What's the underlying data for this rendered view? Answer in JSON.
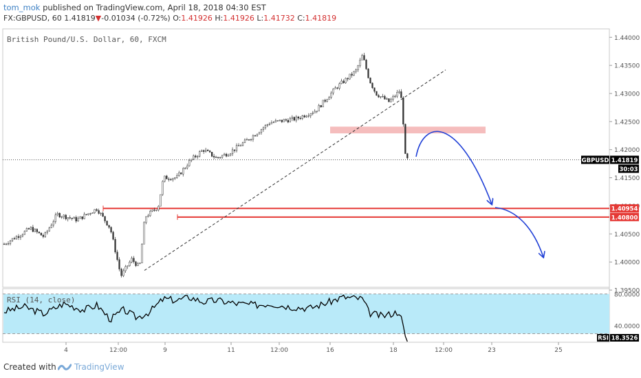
{
  "header": {
    "user": "tom_mok",
    "published_text": "published on TradingView.com, April 18, 2018 04:30 EST",
    "symbol": "FX:GBPUSD, 60",
    "price": "1.41819",
    "change": "-0.01034 (-0.72%)",
    "o_label": "O:",
    "o_value": "1.41926",
    "h_label": "H:",
    "h_value": "1.41926",
    "l_label": "L:",
    "l_value": "1.41732",
    "c_label": "C:",
    "c_value": "1.41819"
  },
  "chart_data": {
    "type": "candlestick",
    "title": "British Pound/U.S. Dollar, 60, FXCM",
    "y_ticks": [
      "1.44000",
      "1.43500",
      "1.43000",
      "1.42500",
      "1.42000",
      "1.41500",
      "1.41000",
      "1.40500",
      "1.40000",
      "1.39500"
    ],
    "x_ticks": [
      "4",
      "12:00",
      "9",
      "11",
      "12:00",
      "16",
      "18",
      "12:00",
      "23",
      "25"
    ],
    "ylim": [
      1.3955,
      1.4415
    ],
    "price_path": [
      {
        "x": 0.0,
        "y": 1.4032
      },
      {
        "x": 2.0,
        "y": 1.406
      },
      {
        "x": 3.0,
        "y": 1.4045
      },
      {
        "x": 4.0,
        "y": 1.4085
      },
      {
        "x": 5.5,
        "y": 1.4075
      },
      {
        "x": 7.0,
        "y": 1.4095
      },
      {
        "x": 8.0,
        "y": 1.406
      },
      {
        "x": 8.8,
        "y": 1.3975
      },
      {
        "x": 9.6,
        "y": 1.4005
      },
      {
        "x": 10.2,
        "y": 1.399
      },
      {
        "x": 10.6,
        "y": 1.408
      },
      {
        "x": 11.6,
        "y": 1.4098
      },
      {
        "x": 12.0,
        "y": 1.415
      },
      {
        "x": 13.0,
        "y": 1.415
      },
      {
        "x": 14.0,
        "y": 1.418
      },
      {
        "x": 15.0,
        "y": 1.42
      },
      {
        "x": 16.0,
        "y": 1.4185
      },
      {
        "x": 17.0,
        "y": 1.4195
      },
      {
        "x": 18.5,
        "y": 1.422
      },
      {
        "x": 20.0,
        "y": 1.4248
      },
      {
        "x": 22.0,
        "y": 1.4255
      },
      {
        "x": 23.5,
        "y": 1.427
      },
      {
        "x": 25.0,
        "y": 1.431
      },
      {
        "x": 26.5,
        "y": 1.434
      },
      {
        "x": 27.0,
        "y": 1.4368
      },
      {
        "x": 27.5,
        "y": 1.4325
      },
      {
        "x": 28.0,
        "y": 1.43
      },
      {
        "x": 29.0,
        "y": 1.4285
      },
      {
        "x": 29.8,
        "y": 1.4305
      },
      {
        "x": 30.0,
        "y": 1.428
      },
      {
        "x": 30.2,
        "y": 1.419
      },
      {
        "x": 30.4,
        "y": 1.4182
      }
    ],
    "support_levels": [
      {
        "label": "1.40954",
        "value": 1.40954
      },
      {
        "label": "1.40800",
        "value": 1.408
      }
    ],
    "resistance_zone": {
      "from": 1.4229,
      "to": 1.4241
    },
    "current_price": {
      "label": "GBPUSD",
      "value": "1.41819",
      "countdown": "30:03"
    },
    "rsi": {
      "label": "RSI (14, close)",
      "ticks": [
        "80.0000",
        "40.0000"
      ],
      "value_label": "RSI",
      "value": "18.3526",
      "upper_band": 80,
      "lower_band": 30,
      "ylim": [
        20,
        85
      ],
      "series": [
        {
          "x": 0.0,
          "y": 58
        },
        {
          "x": 1.5,
          "y": 64
        },
        {
          "x": 3.0,
          "y": 55
        },
        {
          "x": 4.5,
          "y": 68
        },
        {
          "x": 6.0,
          "y": 60
        },
        {
          "x": 7.0,
          "y": 66
        },
        {
          "x": 8.0,
          "y": 48
        },
        {
          "x": 9.0,
          "y": 60
        },
        {
          "x": 10.0,
          "y": 50
        },
        {
          "x": 11.0,
          "y": 58
        },
        {
          "x": 12.0,
          "y": 74
        },
        {
          "x": 13.0,
          "y": 72
        },
        {
          "x": 14.0,
          "y": 76
        },
        {
          "x": 15.0,
          "y": 70
        },
        {
          "x": 16.0,
          "y": 72
        },
        {
          "x": 17.5,
          "y": 68
        },
        {
          "x": 19.0,
          "y": 66
        },
        {
          "x": 20.0,
          "y": 68
        },
        {
          "x": 21.5,
          "y": 64
        },
        {
          "x": 23.0,
          "y": 62
        },
        {
          "x": 24.5,
          "y": 70
        },
        {
          "x": 25.5,
          "y": 76
        },
        {
          "x": 27.0,
          "y": 74
        },
        {
          "x": 27.5,
          "y": 56
        },
        {
          "x": 28.5,
          "y": 52
        },
        {
          "x": 29.8,
          "y": 58
        },
        {
          "x": 30.2,
          "y": 28
        },
        {
          "x": 30.4,
          "y": 18
        }
      ]
    }
  },
  "footer": {
    "created_with": "Created with",
    "brand": "TradingView"
  },
  "colors": {
    "candle": "#333333",
    "support_line": "#e53935",
    "resistance_zone": "#f4b6b6",
    "arrow": "#1f3fd6",
    "rsi_fill": "#b9eaf9",
    "axis_text": "#555555"
  }
}
